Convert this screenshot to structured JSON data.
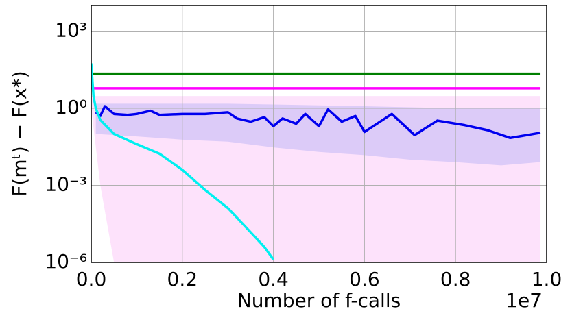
{
  "chart_data": {
    "type": "line",
    "xlabel": "Number of f-calls",
    "ylabel": "F(mᵗ) − F(x*)",
    "x_offset_label": "1e7",
    "xlim": [
      0,
      1
    ],
    "ylim": [
      1e-06,
      10000
    ],
    "yscale": "log",
    "grid": true,
    "xticks": [
      {
        "value": 0,
        "label": "0.0"
      },
      0.2,
      0.4,
      0.6,
      0.8,
      {
        "value": 1,
        "label": "1.0"
      }
    ],
    "yticks": [
      {
        "value": 1000,
        "label": "10³"
      },
      {
        "value": 1,
        "label": "10⁰"
      },
      {
        "value": 0.001,
        "label": "10⁻³"
      },
      {
        "value": 1e-06,
        "label": "10⁻⁶"
      }
    ],
    "bands": [
      {
        "color": "#fde2fb",
        "x": [
          0,
          0.02,
          0.05,
          0.985
        ],
        "upper": [
          3,
          3,
          3,
          3
        ],
        "lower": [
          1,
          0.001,
          1e-06,
          1e-06
        ]
      },
      {
        "color": "#dccbf8",
        "x": [
          0.01,
          0.1,
          0.2,
          0.3,
          0.4,
          0.5,
          0.6,
          0.7,
          0.8,
          0.9,
          0.985
        ],
        "upper": [
          1.5,
          1.5,
          1.5,
          1.5,
          1.4,
          1.3,
          1.2,
          1.1,
          1.0,
          1.0,
          1.0
        ],
        "lower": [
          0.1,
          0.08,
          0.06,
          0.05,
          0.03,
          0.02,
          0.015,
          0.01,
          0.008,
          0.006,
          0.008
        ]
      }
    ],
    "series": [
      {
        "color": "#007f00",
        "x": [
          0,
          0.985
        ],
        "values": [
          22,
          22
        ]
      },
      {
        "color": "#ff00ff",
        "x": [
          0,
          0.985
        ],
        "values": [
          6,
          6
        ]
      },
      {
        "color": "#0000ee",
        "x": [
          0.01,
          0.02,
          0.03,
          0.05,
          0.08,
          0.1,
          0.13,
          0.15,
          0.2,
          0.25,
          0.3,
          0.32,
          0.35,
          0.38,
          0.4,
          0.42,
          0.45,
          0.47,
          0.5,
          0.52,
          0.55,
          0.58,
          0.6,
          0.66,
          0.71,
          0.76,
          0.82,
          0.87,
          0.92,
          0.985
        ],
        "values": [
          0.7,
          0.5,
          1.2,
          0.6,
          0.55,
          0.6,
          0.8,
          0.55,
          0.6,
          0.6,
          0.7,
          0.4,
          0.3,
          0.45,
          0.2,
          0.4,
          0.25,
          0.6,
          0.2,
          0.9,
          0.3,
          0.5,
          0.12,
          0.6,
          0.09,
          0.33,
          0.22,
          0.14,
          0.07,
          0.11
        ]
      },
      {
        "color": "#00f0f0",
        "x": [
          0,
          0.005,
          0.01,
          0.02,
          0.05,
          0.1,
          0.15,
          0.2,
          0.25,
          0.3,
          0.35,
          0.38,
          0.4
        ],
        "values": [
          56,
          3,
          1,
          0.35,
          0.1,
          0.04,
          0.017,
          0.004,
          0.00066,
          0.00013,
          1.5e-05,
          4e-06,
          1.3e-06
        ]
      }
    ]
  }
}
